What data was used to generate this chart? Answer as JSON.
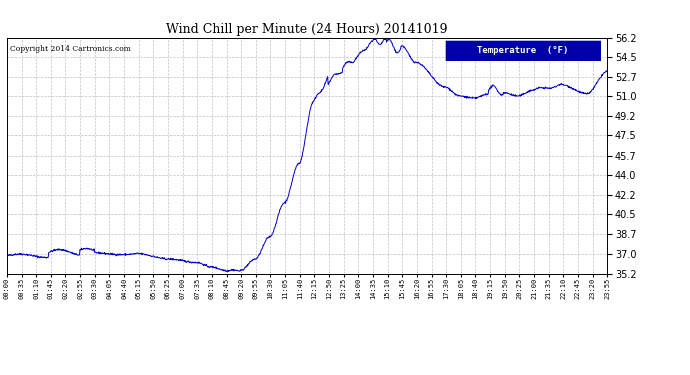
{
  "title": "Wind Chill per Minute (24 Hours) 20141019",
  "copyright": "Copyright 2014 Cartronics.com",
  "legend_label": "Temperature  (°F)",
  "line_color": "#0000cc",
  "background_color": "#ffffff",
  "grid_color": "#aaaaaa",
  "yticks": [
    35.2,
    37.0,
    38.7,
    40.5,
    42.2,
    44.0,
    45.7,
    47.5,
    49.2,
    51.0,
    52.7,
    54.5,
    56.2
  ],
  "ymin": 35.2,
  "ymax": 56.2,
  "xtick_labels": [
    "00:00",
    "00:35",
    "01:10",
    "01:45",
    "02:20",
    "02:55",
    "03:30",
    "04:05",
    "04:40",
    "05:15",
    "05:50",
    "06:25",
    "07:00",
    "07:35",
    "08:10",
    "08:45",
    "09:20",
    "09:55",
    "10:30",
    "11:05",
    "11:40",
    "12:15",
    "12:50",
    "13:25",
    "14:00",
    "14:35",
    "15:10",
    "15:45",
    "16:20",
    "16:55",
    "17:30",
    "18:05",
    "18:40",
    "19:15",
    "19:50",
    "20:25",
    "21:00",
    "21:35",
    "22:10",
    "22:45",
    "23:20",
    "23:55"
  ]
}
